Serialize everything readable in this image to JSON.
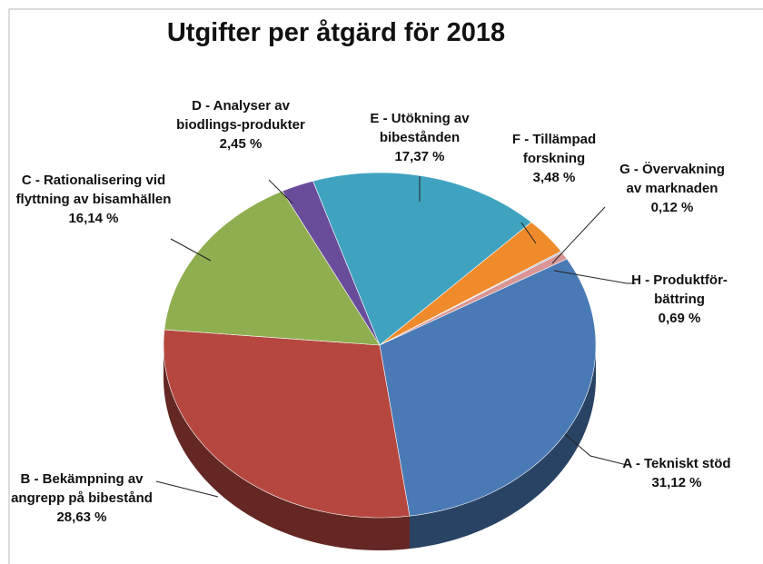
{
  "chart_data": {
    "type": "pie",
    "title": "Utgifter per åtgärd för 2018",
    "categories": [
      "A - Tekniskt stöd",
      "B - Bekämpning av angrepp på bibestånd",
      "C - Rationalisering vid flyttning av bisamhällen",
      "D - Analyser av biodlings-produkter",
      "E - Utökning av bibestånden",
      "F - Tillämpad forskning",
      "G - Övervakning av marknaden",
      "H - Produktför-bättring"
    ],
    "values": [
      31.12,
      28.63,
      16.14,
      2.45,
      17.37,
      3.48,
      0.12,
      0.69
    ],
    "value_labels": [
      "31,12 %",
      "28,63 %",
      "16,14 %",
      "2,45 %",
      "17,37 %",
      "3,48 %",
      "0,12 %",
      "0,69 %"
    ],
    "colors": [
      "#4a7ab5",
      "#b5473f",
      "#8fae4f",
      "#6a4d9a",
      "#3fa3bf",
      "#f08b2c",
      "#9fb6d6",
      "#d99694"
    ]
  }
}
